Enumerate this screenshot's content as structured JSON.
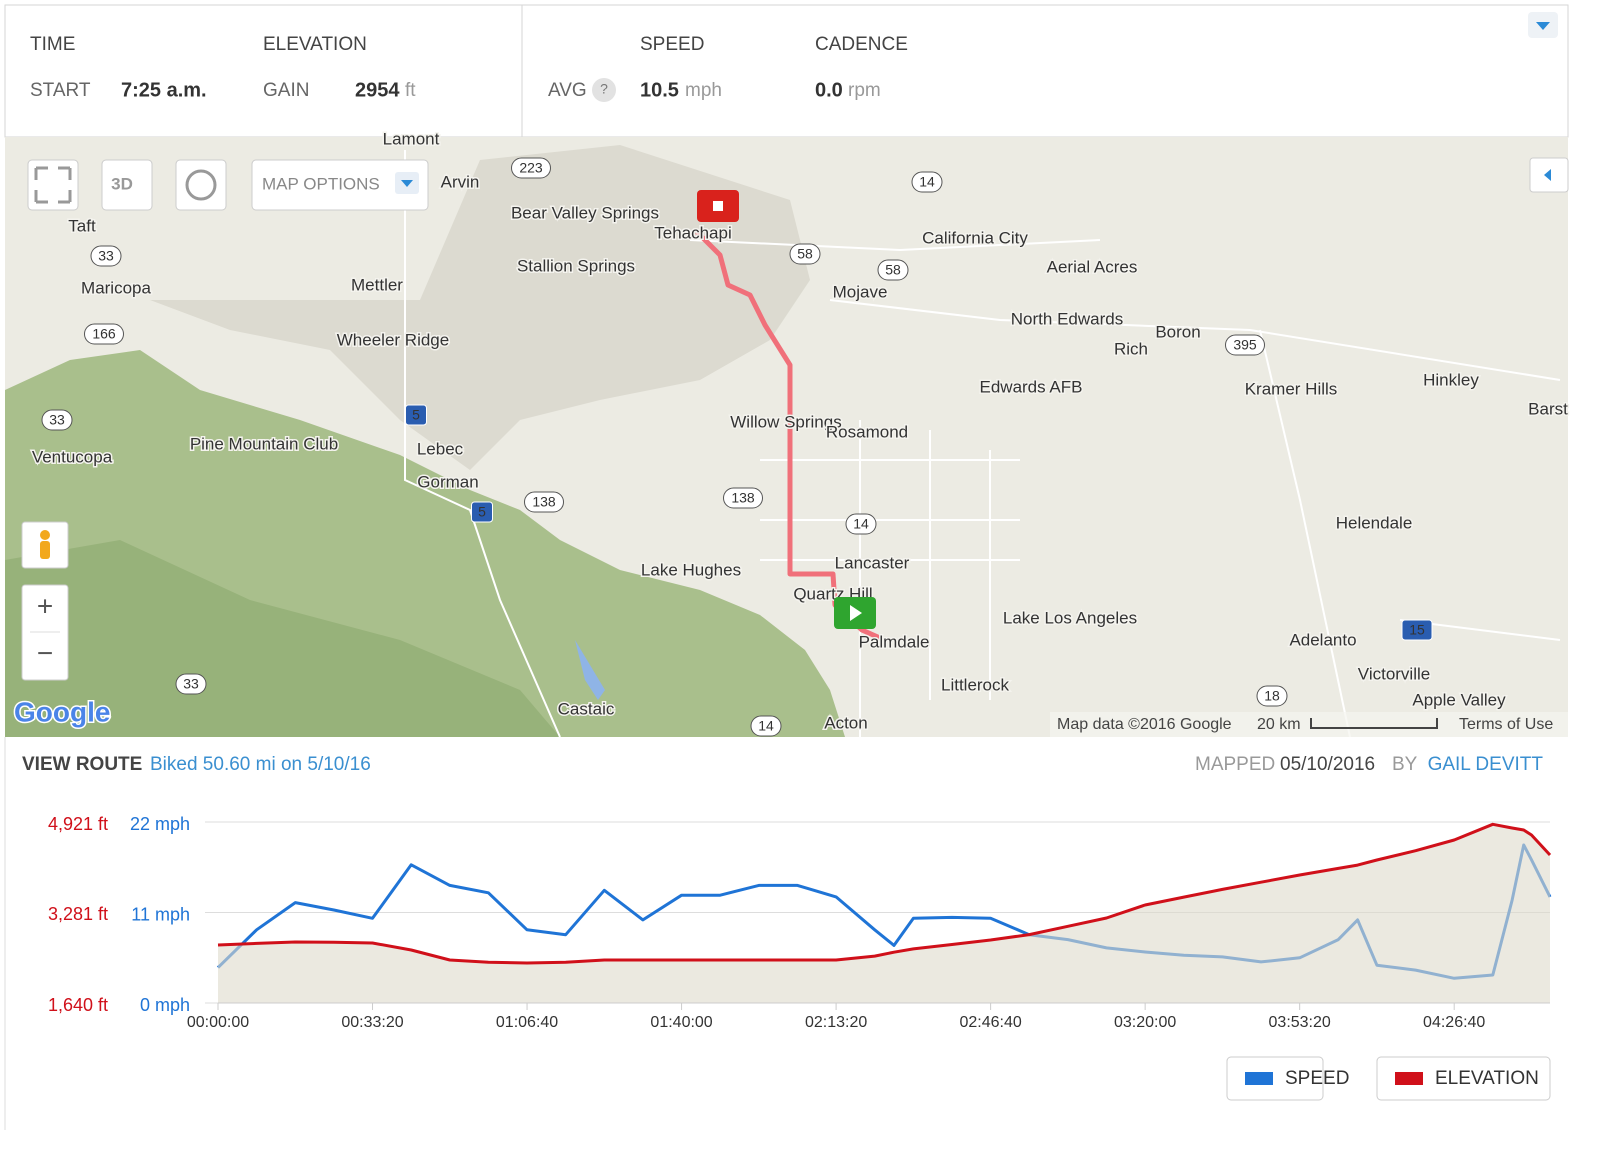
{
  "stats": {
    "time": {
      "header": "TIME",
      "label": "START",
      "value": "7:25 a.m."
    },
    "elevation": {
      "header": "ELEVATION",
      "label": "GAIN",
      "value": "2954",
      "unit": "ft"
    },
    "speed": {
      "header": "SPEED",
      "label": "AVG",
      "help": "?",
      "value": "10.5",
      "unit": "mph"
    },
    "cadence": {
      "header": "CADENCE",
      "value": "0.0",
      "unit": "rpm"
    }
  },
  "map": {
    "places": [
      "Lamont",
      "Arvin",
      "Taft",
      "Bear Valley Springs",
      "Tehachapi",
      "Stallion Springs",
      "Maricopa",
      "Mettler",
      "Mojave",
      "California City",
      "Aerial Acres",
      "North Edwards",
      "Boron",
      "Rich",
      "Wheeler Ridge",
      "Edwards AFB",
      "Kramer Hills",
      "Hinkley",
      "Barst",
      "Willow Springs",
      "Rosamond",
      "Pine Mountain Club",
      "Ventucopa",
      "Lebec",
      "Gorman",
      "Helendale",
      "Lancaster",
      "Lake Hughes",
      "Quartz Hill",
      "Lake Los Angeles",
      "Palmdale",
      "Adelanto",
      "Victorville",
      "Littlerock",
      "Apple Valley",
      "Castaic",
      "Acton"
    ],
    "shields": [
      "223",
      "14",
      "33",
      "58",
      "58",
      "166",
      "395",
      "33",
      "5",
      "138",
      "138",
      "5",
      "14",
      "15",
      "33",
      "18",
      "14"
    ],
    "controls": {
      "three_d": "3D",
      "options": "MAP OPTIONS",
      "zoom_in": "+",
      "zoom_out": "−"
    },
    "logo": "Google",
    "attribution": "Map data ©2016 Google",
    "scale": "20 km",
    "terms": "Terms of Use"
  },
  "route": {
    "view": "VIEW ROUTE",
    "summary": "Biked 50.60 mi on 5/10/16",
    "mapped": "MAPPED",
    "date": "05/10/2016",
    "by": "BY",
    "author": "GAIL DEVITT"
  },
  "chart_data": {
    "type": "line",
    "x": [
      0,
      500,
      1000,
      1500,
      2000,
      2500,
      3000,
      3500,
      4000,
      4500,
      5000,
      5500,
      6000,
      6500,
      7000,
      7500,
      8000,
      8500,
      8750,
      9000,
      9500,
      10000,
      10500,
      11000,
      11500,
      12000,
      12500,
      13000,
      13500,
      14000,
      14500,
      14750,
      15000,
      15500,
      16000,
      16500,
      16750,
      16900,
      17000,
      17240
    ],
    "xlim": [
      0,
      17240
    ],
    "xticks": [
      {
        "value": 0,
        "label": "00:00:00"
      },
      {
        "value": 2000,
        "label": "00:33:20"
      },
      {
        "value": 4000,
        "label": "01:06:40"
      },
      {
        "value": 6000,
        "label": "01:40:00"
      },
      {
        "value": 8000,
        "label": "02:13:20"
      },
      {
        "value": 10000,
        "label": "02:46:40"
      },
      {
        "value": 12000,
        "label": "03:20:00"
      },
      {
        "value": 14000,
        "label": "03:53:20"
      },
      {
        "value": 16000,
        "label": "04:26:40"
      }
    ],
    "ylim": [
      1640,
      4921
    ],
    "yticks": [
      {
        "value": 1640,
        "label": "1,640 ft"
      },
      {
        "value": 3281,
        "label": "3,281 ft"
      },
      {
        "value": 4921,
        "label": "4,921 ft"
      }
    ],
    "y2lim": [
      0,
      22
    ],
    "y2ticks": [
      {
        "value": 0,
        "label": "0 mph"
      },
      {
        "value": 11,
        "label": "11 mph"
      },
      {
        "value": 22,
        "label": "22 mph"
      }
    ],
    "grid": true,
    "series": [
      {
        "name": "SPEED",
        "color": "#1f74d6",
        "axis": "y2",
        "values": [
          4.3,
          8.9,
          12.2,
          11.3,
          10.3,
          16.8,
          14.3,
          13.4,
          8.9,
          8.3,
          13.7,
          10.1,
          13.1,
          13.1,
          14.3,
          14.3,
          12.9,
          8.9,
          7.0,
          10.3,
          10.4,
          10.3,
          8.3,
          7.7,
          6.7,
          6.2,
          5.8,
          5.6,
          5.0,
          5.5,
          7.7,
          10.1,
          4.6,
          4.0,
          3.0,
          3.4,
          12.5,
          19.2,
          17.4,
          12.9
        ]
      },
      {
        "name": "ELEVATION",
        "color": "#d0101a",
        "axis": "y",
        "values": [
          2691,
          2720,
          2746,
          2740,
          2728,
          2600,
          2420,
          2380,
          2365,
          2380,
          2420,
          2420,
          2420,
          2420,
          2420,
          2420,
          2420,
          2490,
          2560,
          2620,
          2700,
          2782,
          2880,
          3030,
          3180,
          3417,
          3560,
          3700,
          3830,
          3960,
          4080,
          4140,
          4232,
          4400,
          4595,
          4880,
          4812,
          4776,
          4686,
          4323
        ]
      }
    ]
  }
}
